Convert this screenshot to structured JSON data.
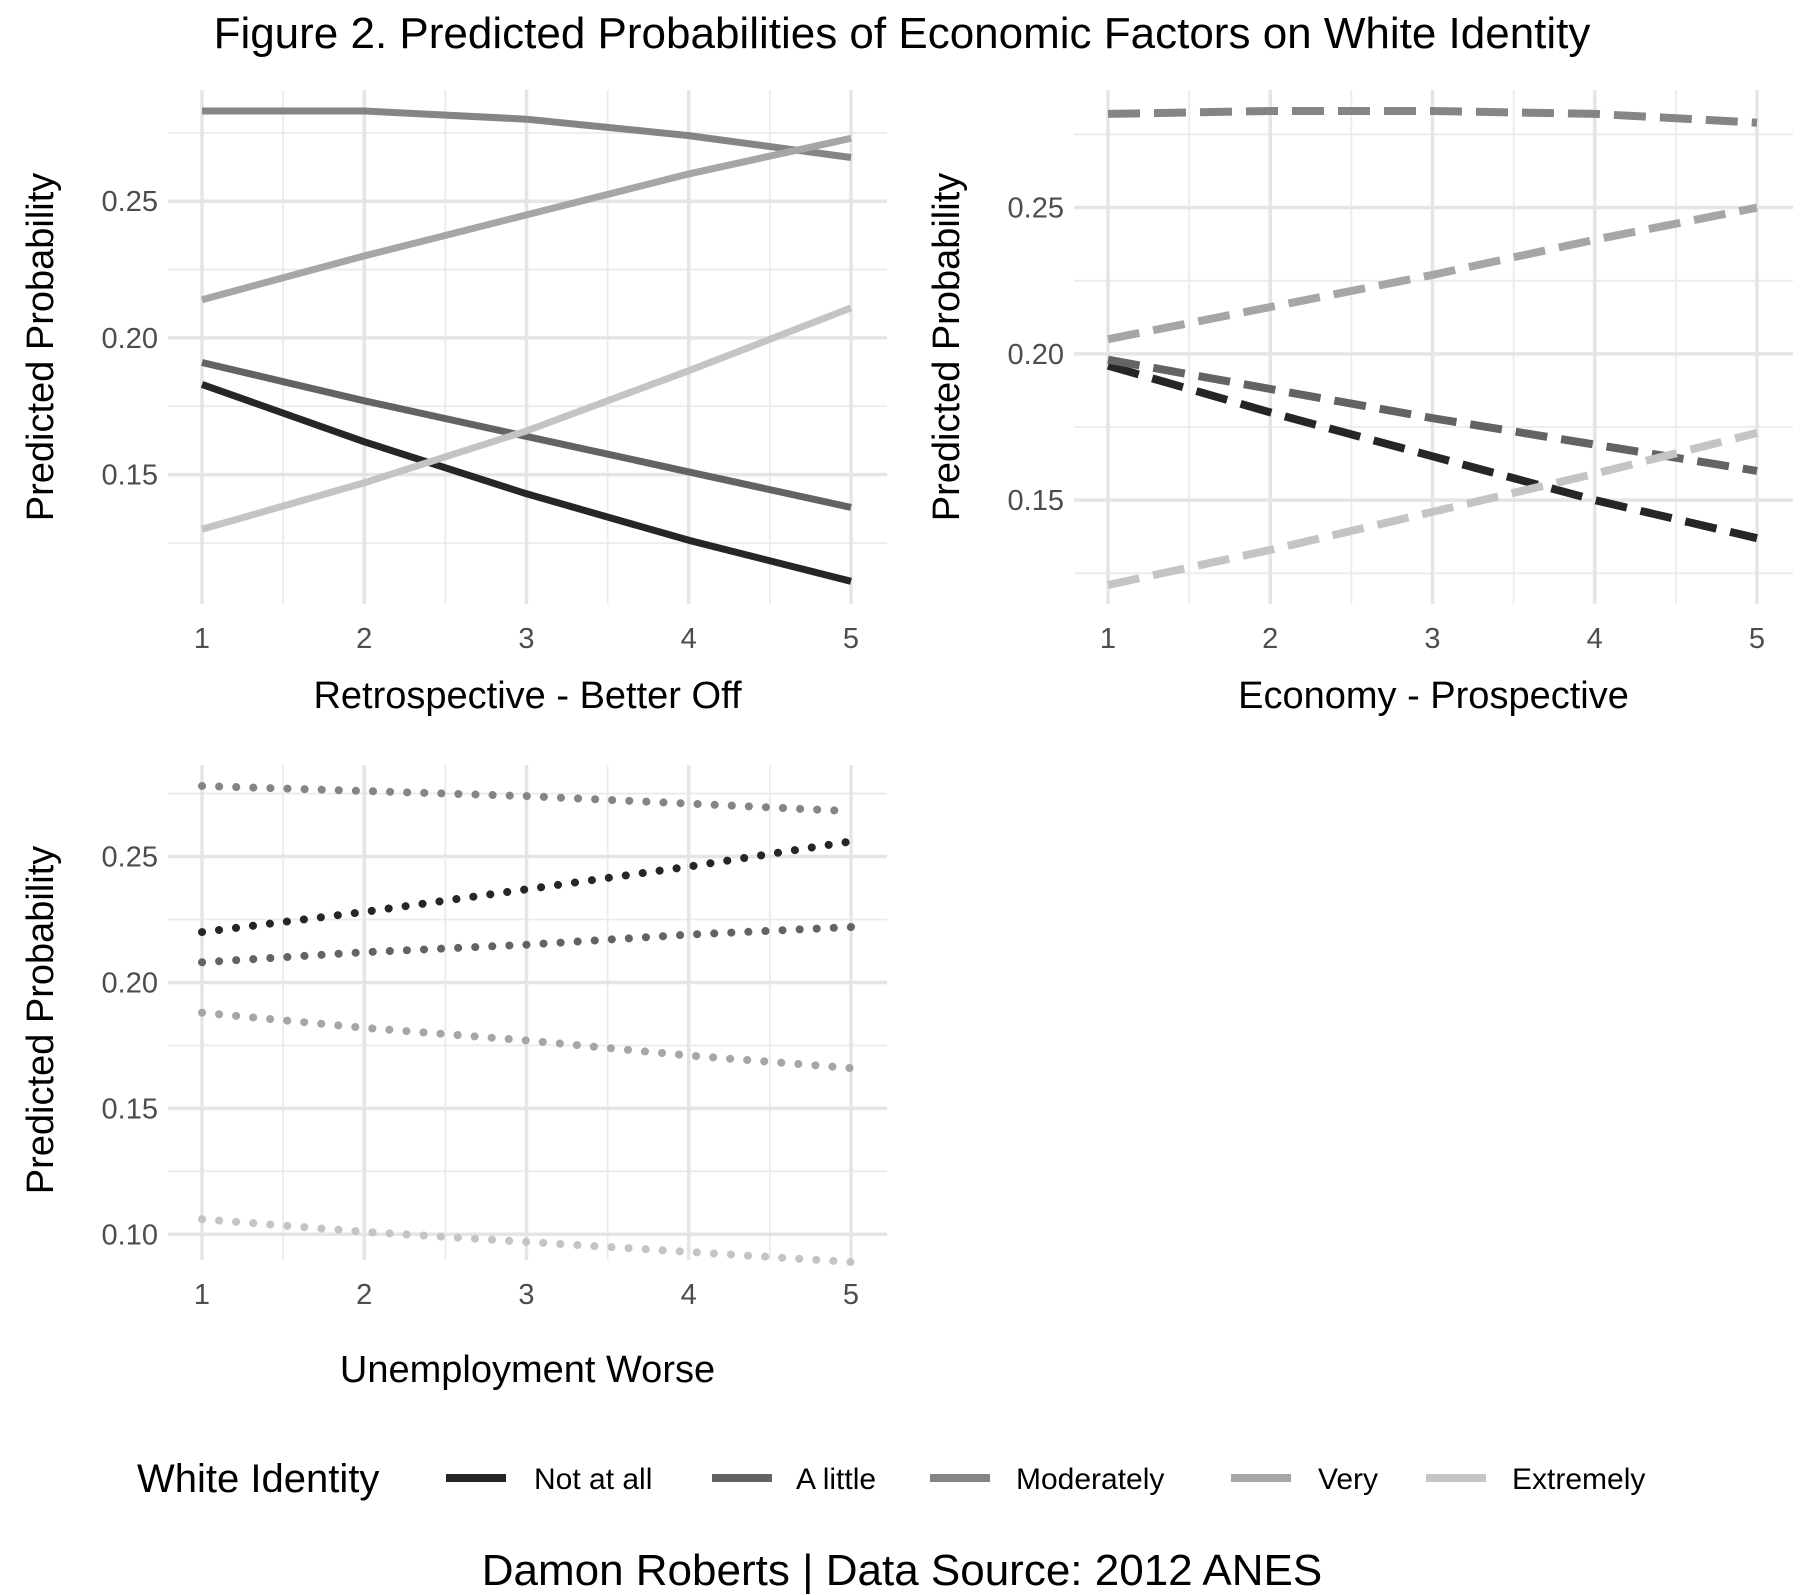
{
  "title": "Figure 2. Predicted Probabilities of Economic Factors on White Identity",
  "caption": "Damon Roberts | Data Source: 2012 ANES",
  "legend": {
    "title": "White Identity",
    "items": [
      {
        "label": "Not at all",
        "color": "#262626"
      },
      {
        "label": "A little",
        "color": "#636363"
      },
      {
        "label": "Moderately",
        "color": "#858585"
      },
      {
        "label": "Very",
        "color": "#a6a6a6"
      },
      {
        "label": "Extremely",
        "color": "#c4c4c4"
      }
    ]
  },
  "chart_data": [
    {
      "type": "line",
      "line_style": "solid",
      "xlabel": "Retrospective - Better Off",
      "ylabel": "Predicted Probability",
      "x": [
        1,
        2,
        3,
        4,
        5
      ],
      "xlim": [
        1,
        5
      ],
      "ylim": [
        0.11,
        0.283
      ],
      "yticks": [
        "0.15",
        "0.20",
        "0.25"
      ],
      "grid": true,
      "series": [
        {
          "name": "Not at all",
          "values": [
            0.183,
            0.162,
            0.143,
            0.126,
            0.111
          ]
        },
        {
          "name": "A little",
          "values": [
            0.191,
            0.177,
            0.164,
            0.151,
            0.138
          ]
        },
        {
          "name": "Moderately",
          "values": [
            0.283,
            0.283,
            0.28,
            0.274,
            0.266
          ]
        },
        {
          "name": "Very",
          "values": [
            0.214,
            0.23,
            0.245,
            0.26,
            0.273
          ]
        },
        {
          "name": "Extremely",
          "values": [
            0.13,
            0.147,
            0.166,
            0.188,
            0.211
          ]
        }
      ]
    },
    {
      "type": "line",
      "line_style": "dashed",
      "xlabel": "Economy - Prospective",
      "ylabel": "Predicted Probability",
      "x": [
        1,
        2,
        3,
        4,
        5
      ],
      "xlim": [
        1,
        5
      ],
      "ylim": [
        0.121,
        0.283
      ],
      "yticks": [
        "0.15",
        "0.20",
        "0.25"
      ],
      "grid": true,
      "series": [
        {
          "name": "Not at all",
          "values": [
            0.196,
            0.18,
            0.165,
            0.15,
            0.137
          ]
        },
        {
          "name": "A little",
          "values": [
            0.198,
            0.188,
            0.178,
            0.169,
            0.16
          ]
        },
        {
          "name": "Moderately",
          "values": [
            0.282,
            0.283,
            0.283,
            0.282,
            0.279
          ]
        },
        {
          "name": "Very",
          "values": [
            0.205,
            0.216,
            0.227,
            0.239,
            0.25
          ]
        },
        {
          "name": "Extremely",
          "values": [
            0.121,
            0.133,
            0.146,
            0.159,
            0.173
          ]
        }
      ]
    },
    {
      "type": "line",
      "line_style": "dotted",
      "xlabel": "Unemployment Worse",
      "ylabel": "Predicted Probability",
      "x": [
        1,
        2,
        3,
        4,
        5
      ],
      "xlim": [
        1,
        5
      ],
      "ylim": [
        0.089,
        0.278
      ],
      "yticks": [
        "0.10",
        "0.15",
        "0.20",
        "0.25"
      ],
      "grid": true,
      "series": [
        {
          "name": "Not at all",
          "values": [
            0.22,
            0.228,
            0.237,
            0.246,
            0.256
          ]
        },
        {
          "name": "A little",
          "values": [
            0.208,
            0.212,
            0.215,
            0.219,
            0.222
          ]
        },
        {
          "name": "Moderately",
          "values": [
            0.278,
            0.276,
            0.274,
            0.271,
            0.268
          ]
        },
        {
          "name": "Very",
          "values": [
            0.188,
            0.182,
            0.177,
            0.171,
            0.166
          ]
        },
        {
          "name": "Extremely",
          "values": [
            0.106,
            0.101,
            0.097,
            0.093,
            0.089
          ]
        }
      ]
    }
  ]
}
